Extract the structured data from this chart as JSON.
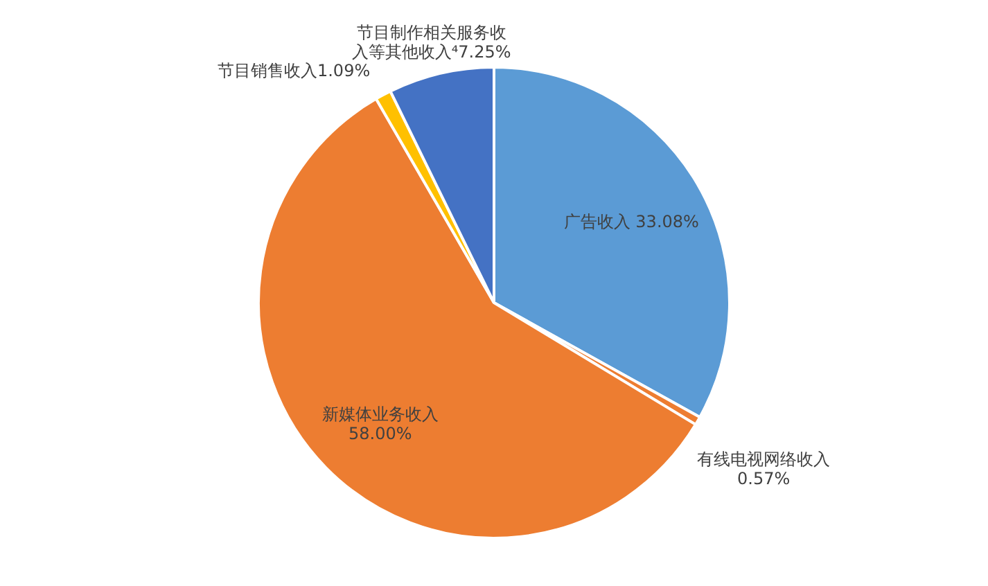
{
  "chart_data": {
    "type": "pie",
    "categories": [
      "广告收入",
      "有线电视网络收入",
      "新媒体业务收入",
      "节目销售收入",
      "节目制作相关服务收入等其他收入⁴"
    ],
    "values": [
      33.08,
      0.57,
      58.0,
      1.09,
      7.25
    ],
    "value_labels": [
      "33.08%",
      "0.57%",
      "58.00%",
      "1.09%",
      "7.25%"
    ],
    "colors": [
      "#5b9bd5",
      "#ed7d31",
      "#ed7d31",
      "#ffc000",
      "#4472c4"
    ],
    "legend": false
  }
}
